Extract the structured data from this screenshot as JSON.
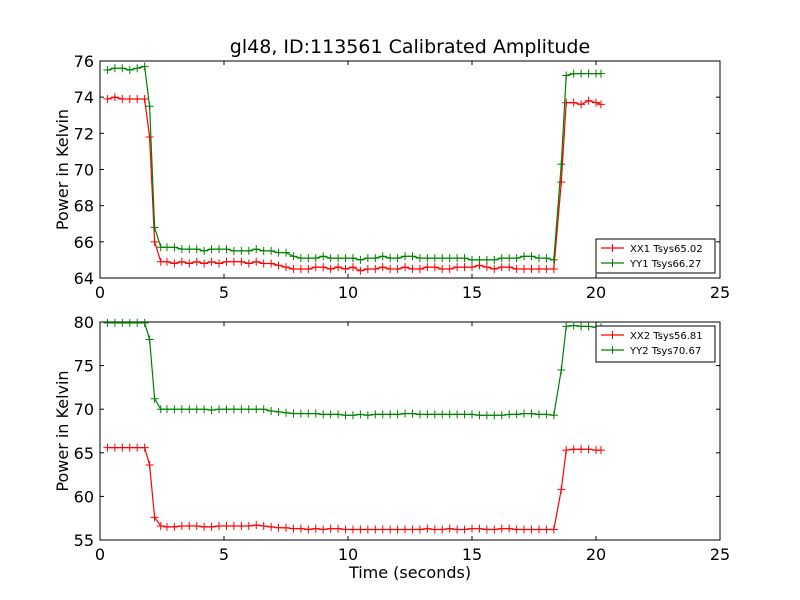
{
  "figure": {
    "title": "gl48, ID:113561 Calibrated Amplitude"
  },
  "chart_data": [
    {
      "type": "line",
      "xlabel": "",
      "ylabel": "Power in Kelvin",
      "xlim": [
        0,
        25
      ],
      "ylim": [
        64,
        76
      ],
      "xticks": [
        0,
        5,
        10,
        15,
        20,
        25
      ],
      "yticks": [
        64,
        66,
        68,
        70,
        72,
        74,
        76
      ],
      "grid": false,
      "legend_position": "lower right",
      "series": [
        {
          "name": "XX1 Tsys65.02",
          "color": "#ff0000",
          "x": [
            0.3,
            0.6,
            0.9,
            1.2,
            1.5,
            1.8,
            2.0,
            2.2,
            2.45,
            2.7,
            3.0,
            3.3,
            3.6,
            3.9,
            4.2,
            4.5,
            4.8,
            5.1,
            5.4,
            5.7,
            6.0,
            6.3,
            6.6,
            6.9,
            7.2,
            7.5,
            7.8,
            8.1,
            8.4,
            8.7,
            9.0,
            9.3,
            9.6,
            9.9,
            10.2,
            10.5,
            10.8,
            11.1,
            11.4,
            11.7,
            12.0,
            12.3,
            12.6,
            12.9,
            13.2,
            13.5,
            13.8,
            14.1,
            14.4,
            14.7,
            15.0,
            15.3,
            15.6,
            15.9,
            16.2,
            16.5,
            16.8,
            17.1,
            17.4,
            17.7,
            18.0,
            18.3,
            18.6,
            18.8,
            19.1,
            19.4,
            19.7,
            20.0,
            20.2
          ],
          "values": [
            73.9,
            74.0,
            73.9,
            73.9,
            73.9,
            73.9,
            71.8,
            66.0,
            64.9,
            64.9,
            64.8,
            64.9,
            64.8,
            64.9,
            64.8,
            64.9,
            64.8,
            64.9,
            64.9,
            64.9,
            64.8,
            64.9,
            64.8,
            64.8,
            64.7,
            64.6,
            64.5,
            64.5,
            64.5,
            64.6,
            64.6,
            64.5,
            64.6,
            64.5,
            64.6,
            64.4,
            64.5,
            64.5,
            64.6,
            64.5,
            64.5,
            64.6,
            64.5,
            64.5,
            64.6,
            64.6,
            64.5,
            64.5,
            64.6,
            64.6,
            64.6,
            64.7,
            64.6,
            64.5,
            64.6,
            64.6,
            64.5,
            64.5,
            64.5,
            64.5,
            64.5,
            64.5,
            69.3,
            73.7,
            73.7,
            73.6,
            73.8,
            73.7,
            73.6
          ]
        },
        {
          "name": "YY1 Tsys66.27",
          "color": "#008000",
          "x": [
            0.3,
            0.6,
            0.9,
            1.2,
            1.5,
            1.8,
            2.0,
            2.2,
            2.45,
            2.7,
            3.0,
            3.3,
            3.6,
            3.9,
            4.2,
            4.5,
            4.8,
            5.1,
            5.4,
            5.7,
            6.0,
            6.3,
            6.6,
            6.9,
            7.2,
            7.5,
            7.8,
            8.1,
            8.4,
            8.7,
            9.0,
            9.3,
            9.6,
            9.9,
            10.2,
            10.5,
            10.8,
            11.1,
            11.4,
            11.7,
            12.0,
            12.3,
            12.6,
            12.9,
            13.2,
            13.5,
            13.8,
            14.1,
            14.4,
            14.7,
            15.0,
            15.3,
            15.6,
            15.9,
            16.2,
            16.5,
            16.8,
            17.1,
            17.4,
            17.7,
            18.0,
            18.3,
            18.6,
            18.8,
            19.1,
            19.4,
            19.7,
            20.0,
            20.2
          ],
          "values": [
            75.5,
            75.6,
            75.6,
            75.5,
            75.6,
            75.7,
            73.5,
            66.8,
            65.7,
            65.7,
            65.7,
            65.6,
            65.6,
            65.6,
            65.5,
            65.6,
            65.6,
            65.6,
            65.5,
            65.5,
            65.5,
            65.6,
            65.5,
            65.5,
            65.4,
            65.4,
            65.2,
            65.1,
            65.1,
            65.1,
            65.2,
            65.1,
            65.1,
            65.1,
            65.1,
            65.0,
            65.1,
            65.1,
            65.2,
            65.1,
            65.1,
            65.2,
            65.2,
            65.1,
            65.1,
            65.1,
            65.1,
            65.1,
            65.1,
            65.1,
            65.0,
            65.0,
            65.0,
            65.0,
            65.1,
            65.1,
            65.1,
            65.2,
            65.2,
            65.1,
            65.1,
            65.0,
            70.3,
            75.2,
            75.3,
            75.3,
            75.3,
            75.3,
            75.3
          ]
        }
      ]
    },
    {
      "type": "line",
      "xlabel": "Time (seconds)",
      "ylabel": "Power in Kelvin",
      "xlim": [
        0,
        25
      ],
      "ylim": [
        55,
        80
      ],
      "xticks": [
        0,
        5,
        10,
        15,
        20,
        25
      ],
      "yticks": [
        55,
        60,
        65,
        70,
        75,
        80
      ],
      "grid": false,
      "legend_position": "upper right",
      "series": [
        {
          "name": "XX2 Tsys56.81",
          "color": "#ff0000",
          "x": [
            0.3,
            0.6,
            0.9,
            1.2,
            1.5,
            1.8,
            2.0,
            2.2,
            2.45,
            2.7,
            3.0,
            3.3,
            3.6,
            3.9,
            4.2,
            4.5,
            4.8,
            5.1,
            5.4,
            5.7,
            6.0,
            6.3,
            6.6,
            6.9,
            7.2,
            7.5,
            7.8,
            8.1,
            8.4,
            8.7,
            9.0,
            9.3,
            9.6,
            9.9,
            10.2,
            10.5,
            10.8,
            11.1,
            11.4,
            11.7,
            12.0,
            12.3,
            12.6,
            12.9,
            13.2,
            13.5,
            13.8,
            14.1,
            14.4,
            14.7,
            15.0,
            15.3,
            15.6,
            15.9,
            16.2,
            16.5,
            16.8,
            17.1,
            17.4,
            17.7,
            18.0,
            18.3,
            18.6,
            18.8,
            19.1,
            19.4,
            19.7,
            20.0,
            20.2
          ],
          "values": [
            65.6,
            65.6,
            65.6,
            65.6,
            65.6,
            65.6,
            63.6,
            57.6,
            56.6,
            56.5,
            56.5,
            56.6,
            56.6,
            56.6,
            56.5,
            56.5,
            56.6,
            56.6,
            56.6,
            56.6,
            56.6,
            56.7,
            56.6,
            56.5,
            56.4,
            56.4,
            56.3,
            56.3,
            56.2,
            56.3,
            56.2,
            56.3,
            56.3,
            56.2,
            56.2,
            56.2,
            56.2,
            56.2,
            56.2,
            56.2,
            56.2,
            56.2,
            56.2,
            56.2,
            56.3,
            56.2,
            56.2,
            56.3,
            56.2,
            56.2,
            56.3,
            56.3,
            56.2,
            56.2,
            56.3,
            56.3,
            56.2,
            56.2,
            56.2,
            56.2,
            56.2,
            56.2,
            60.8,
            65.3,
            65.4,
            65.4,
            65.4,
            65.3,
            65.3
          ]
        },
        {
          "name": "YY2 Tsys70.67",
          "color": "#008000",
          "x": [
            0.3,
            0.6,
            0.9,
            1.2,
            1.5,
            1.8,
            2.0,
            2.2,
            2.45,
            2.7,
            3.0,
            3.3,
            3.6,
            3.9,
            4.2,
            4.5,
            4.8,
            5.1,
            5.4,
            5.7,
            6.0,
            6.3,
            6.6,
            6.9,
            7.2,
            7.5,
            7.8,
            8.1,
            8.4,
            8.7,
            9.0,
            9.3,
            9.6,
            9.9,
            10.2,
            10.5,
            10.8,
            11.1,
            11.4,
            11.7,
            12.0,
            12.3,
            12.6,
            12.9,
            13.2,
            13.5,
            13.8,
            14.1,
            14.4,
            14.7,
            15.0,
            15.3,
            15.6,
            15.9,
            16.2,
            16.5,
            16.8,
            17.1,
            17.4,
            17.7,
            18.0,
            18.3,
            18.6,
            18.8,
            19.1,
            19.4,
            19.7,
            20.0,
            20.2
          ],
          "values": [
            79.9,
            79.9,
            79.9,
            79.9,
            79.9,
            79.9,
            78.0,
            71.2,
            70.0,
            70.0,
            70.0,
            70.0,
            70.0,
            70.0,
            70.0,
            69.9,
            70.0,
            70.0,
            70.0,
            70.0,
            70.0,
            70.0,
            70.0,
            69.8,
            69.7,
            69.6,
            69.5,
            69.5,
            69.5,
            69.5,
            69.4,
            69.4,
            69.4,
            69.3,
            69.3,
            69.4,
            69.3,
            69.4,
            69.4,
            69.4,
            69.4,
            69.5,
            69.5,
            69.4,
            69.4,
            69.4,
            69.4,
            69.4,
            69.4,
            69.4,
            69.4,
            69.3,
            69.3,
            69.3,
            69.3,
            69.4,
            69.4,
            69.5,
            69.5,
            69.4,
            69.4,
            69.3,
            74.5,
            79.5,
            79.6,
            79.5,
            79.5,
            79.4,
            79.4
          ]
        }
      ]
    }
  ]
}
